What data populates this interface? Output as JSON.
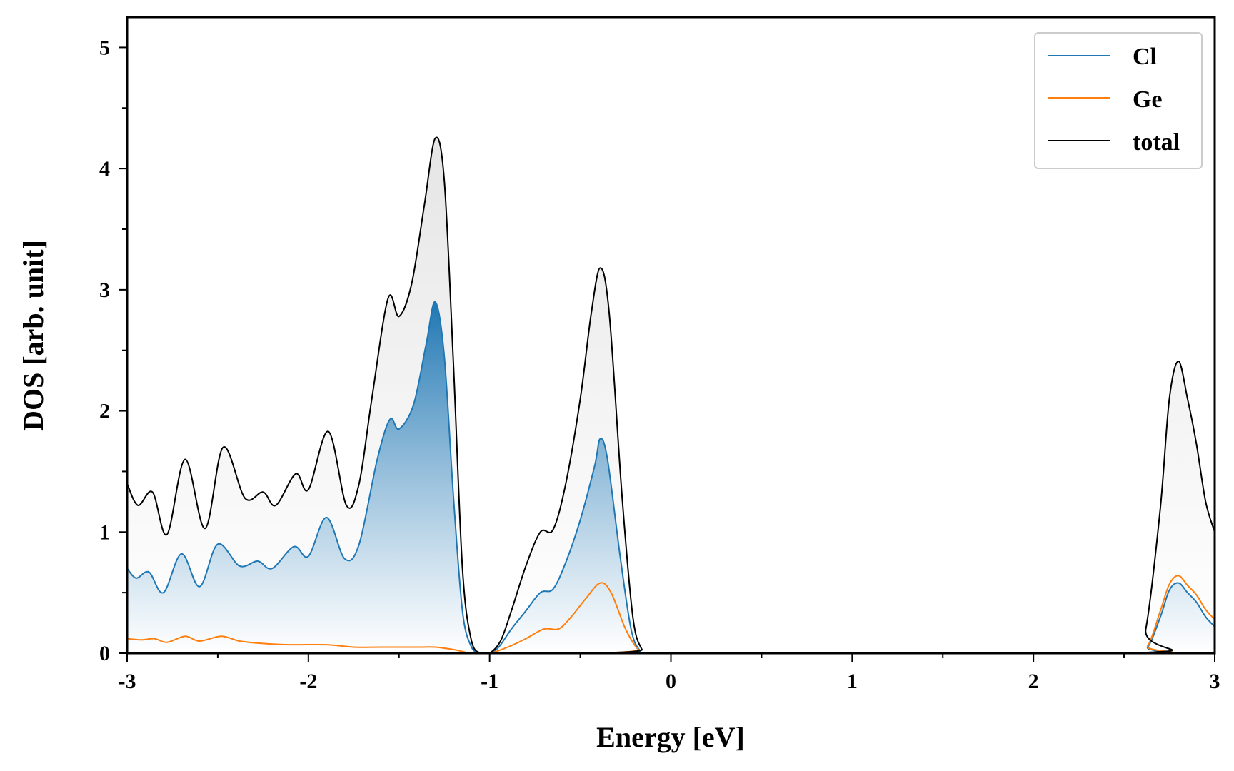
{
  "chart_data": {
    "type": "area",
    "title": "",
    "xlabel": "Energy [eV]",
    "ylabel": "DOS [arb. unit]",
    "xlim": [
      -3,
      3
    ],
    "ylim": [
      0,
      5.25
    ],
    "xticks": [
      -3,
      -2,
      -1,
      0,
      1,
      2,
      3
    ],
    "xtick_labels": [
      "-3",
      "-2",
      "-1",
      "0",
      "1",
      "2",
      "3"
    ],
    "yticks": [
      0,
      1,
      2,
      3,
      4,
      5
    ],
    "ytick_labels": [
      "0",
      "1",
      "2",
      "3",
      "4",
      "5"
    ],
    "grid": false,
    "legend_position": "top-right",
    "series": [
      {
        "name": "Cl",
        "color": "#1f77b4",
        "filled": true,
        "points": [
          [
            -3.0,
            0.7
          ],
          [
            -2.95,
            0.62
          ],
          [
            -2.88,
            0.67
          ],
          [
            -2.8,
            0.5
          ],
          [
            -2.7,
            0.82
          ],
          [
            -2.6,
            0.55
          ],
          [
            -2.5,
            0.9
          ],
          [
            -2.38,
            0.72
          ],
          [
            -2.28,
            0.76
          ],
          [
            -2.2,
            0.7
          ],
          [
            -2.08,
            0.88
          ],
          [
            -2.0,
            0.8
          ],
          [
            -1.9,
            1.12
          ],
          [
            -1.8,
            0.78
          ],
          [
            -1.72,
            0.9
          ],
          [
            -1.62,
            1.6
          ],
          [
            -1.55,
            1.93
          ],
          [
            -1.5,
            1.85
          ],
          [
            -1.42,
            2.05
          ],
          [
            -1.35,
            2.55
          ],
          [
            -1.3,
            2.9
          ],
          [
            -1.25,
            2.45
          ],
          [
            -1.2,
            1.3
          ],
          [
            -1.15,
            0.35
          ],
          [
            -1.1,
            0.05
          ],
          [
            -1.05,
            0.0
          ],
          [
            -1.0,
            0.0
          ],
          [
            -0.95,
            0.05
          ],
          [
            -0.88,
            0.2
          ],
          [
            -0.8,
            0.35
          ],
          [
            -0.72,
            0.5
          ],
          [
            -0.65,
            0.53
          ],
          [
            -0.58,
            0.75
          ],
          [
            -0.5,
            1.1
          ],
          [
            -0.42,
            1.55
          ],
          [
            -0.39,
            1.77
          ],
          [
            -0.35,
            1.6
          ],
          [
            -0.28,
            0.8
          ],
          [
            -0.22,
            0.2
          ],
          [
            -0.17,
            0.02
          ],
          [
            -0.12,
            0.0
          ],
          [
            2.55,
            0.0
          ],
          [
            2.63,
            0.05
          ],
          [
            2.7,
            0.3
          ],
          [
            2.75,
            0.52
          ],
          [
            2.8,
            0.58
          ],
          [
            2.85,
            0.5
          ],
          [
            2.9,
            0.42
          ],
          [
            2.95,
            0.3
          ],
          [
            3.0,
            0.22
          ]
        ]
      },
      {
        "name": "Ge",
        "color": "#ff7f0e",
        "filled": false,
        "points": [
          [
            -3.0,
            0.12
          ],
          [
            -2.92,
            0.11
          ],
          [
            -2.85,
            0.12
          ],
          [
            -2.78,
            0.09
          ],
          [
            -2.68,
            0.14
          ],
          [
            -2.6,
            0.1
          ],
          [
            -2.48,
            0.14
          ],
          [
            -2.38,
            0.1
          ],
          [
            -2.25,
            0.08
          ],
          [
            -2.1,
            0.07
          ],
          [
            -1.9,
            0.07
          ],
          [
            -1.75,
            0.05
          ],
          [
            -1.6,
            0.05
          ],
          [
            -1.4,
            0.05
          ],
          [
            -1.3,
            0.05
          ],
          [
            -1.2,
            0.03
          ],
          [
            -1.1,
            0.0
          ],
          [
            -1.0,
            0.0
          ],
          [
            -0.9,
            0.05
          ],
          [
            -0.8,
            0.12
          ],
          [
            -0.7,
            0.2
          ],
          [
            -0.62,
            0.2
          ],
          [
            -0.55,
            0.3
          ],
          [
            -0.47,
            0.45
          ],
          [
            -0.39,
            0.58
          ],
          [
            -0.33,
            0.5
          ],
          [
            -0.25,
            0.2
          ],
          [
            -0.18,
            0.03
          ],
          [
            -0.12,
            0.0
          ],
          [
            2.55,
            0.0
          ],
          [
            2.63,
            0.06
          ],
          [
            2.7,
            0.35
          ],
          [
            2.75,
            0.57
          ],
          [
            2.8,
            0.64
          ],
          [
            2.85,
            0.56
          ],
          [
            2.9,
            0.48
          ],
          [
            2.95,
            0.36
          ],
          [
            3.0,
            0.28
          ]
        ]
      },
      {
        "name": "total",
        "color": "#000000",
        "filled": true,
        "points": [
          [
            -3.0,
            1.4
          ],
          [
            -2.94,
            1.22
          ],
          [
            -2.86,
            1.33
          ],
          [
            -2.78,
            0.98
          ],
          [
            -2.68,
            1.6
          ],
          [
            -2.57,
            1.03
          ],
          [
            -2.47,
            1.7
          ],
          [
            -2.35,
            1.28
          ],
          [
            -2.25,
            1.33
          ],
          [
            -2.18,
            1.22
          ],
          [
            -2.07,
            1.48
          ],
          [
            -2.0,
            1.35
          ],
          [
            -1.89,
            1.83
          ],
          [
            -1.79,
            1.22
          ],
          [
            -1.72,
            1.4
          ],
          [
            -1.65,
            2.1
          ],
          [
            -1.56,
            2.93
          ],
          [
            -1.5,
            2.78
          ],
          [
            -1.43,
            3.05
          ],
          [
            -1.36,
            3.7
          ],
          [
            -1.3,
            4.25
          ],
          [
            -1.25,
            3.9
          ],
          [
            -1.2,
            2.4
          ],
          [
            -1.15,
            0.7
          ],
          [
            -1.1,
            0.1
          ],
          [
            -1.05,
            0.0
          ],
          [
            -1.0,
            0.0
          ],
          [
            -0.94,
            0.1
          ],
          [
            -0.88,
            0.35
          ],
          [
            -0.8,
            0.72
          ],
          [
            -0.72,
            1.0
          ],
          [
            -0.65,
            1.02
          ],
          [
            -0.58,
            1.4
          ],
          [
            -0.5,
            2.1
          ],
          [
            -0.44,
            2.8
          ],
          [
            -0.39,
            3.18
          ],
          [
            -0.34,
            2.8
          ],
          [
            -0.27,
            1.3
          ],
          [
            -0.21,
            0.3
          ],
          [
            -0.16,
            0.03
          ],
          [
            -0.12,
            0.0
          ],
          [
            2.55,
            0.0
          ],
          [
            2.62,
            0.2
          ],
          [
            2.7,
            1.2
          ],
          [
            2.75,
            2.1
          ],
          [
            2.8,
            2.41
          ],
          [
            2.85,
            2.1
          ],
          [
            2.9,
            1.72
          ],
          [
            2.95,
            1.25
          ],
          [
            3.0,
            1.0
          ]
        ]
      }
    ]
  }
}
